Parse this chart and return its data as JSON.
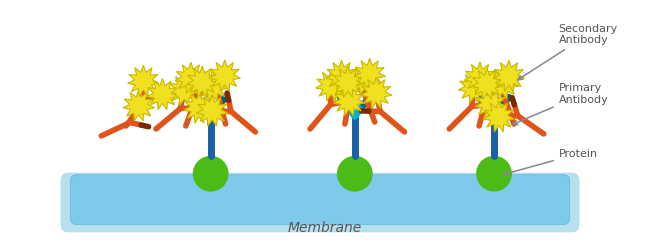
{
  "bg_color": "#ffffff",
  "membrane_color_light": "#b8dff0",
  "membrane_color_main": "#7ecaea",
  "membrane_color_edge": "#5ab8e0",
  "protein_color": "#4cbb17",
  "protein_edge": "#3a9912",
  "primary_stem_color": "#1a5fa8",
  "primary_arm_color": "#00b0d0",
  "primary_tip_color": "#006080",
  "secondary_color": "#e0541a",
  "secondary_dark": "#7a2800",
  "star_fill": "#f0e020",
  "star_edge": "#c8b800",
  "label_color": "#555555",
  "arrow_color": "#888888",
  "membrane_label": "Membrane",
  "secondary_label": "Secondary\nAntibody",
  "primary_label": "Primary\nAntibody",
  "protein_label": "Protein",
  "figsize": [
    6.48,
    2.44
  ],
  "dpi": 100
}
